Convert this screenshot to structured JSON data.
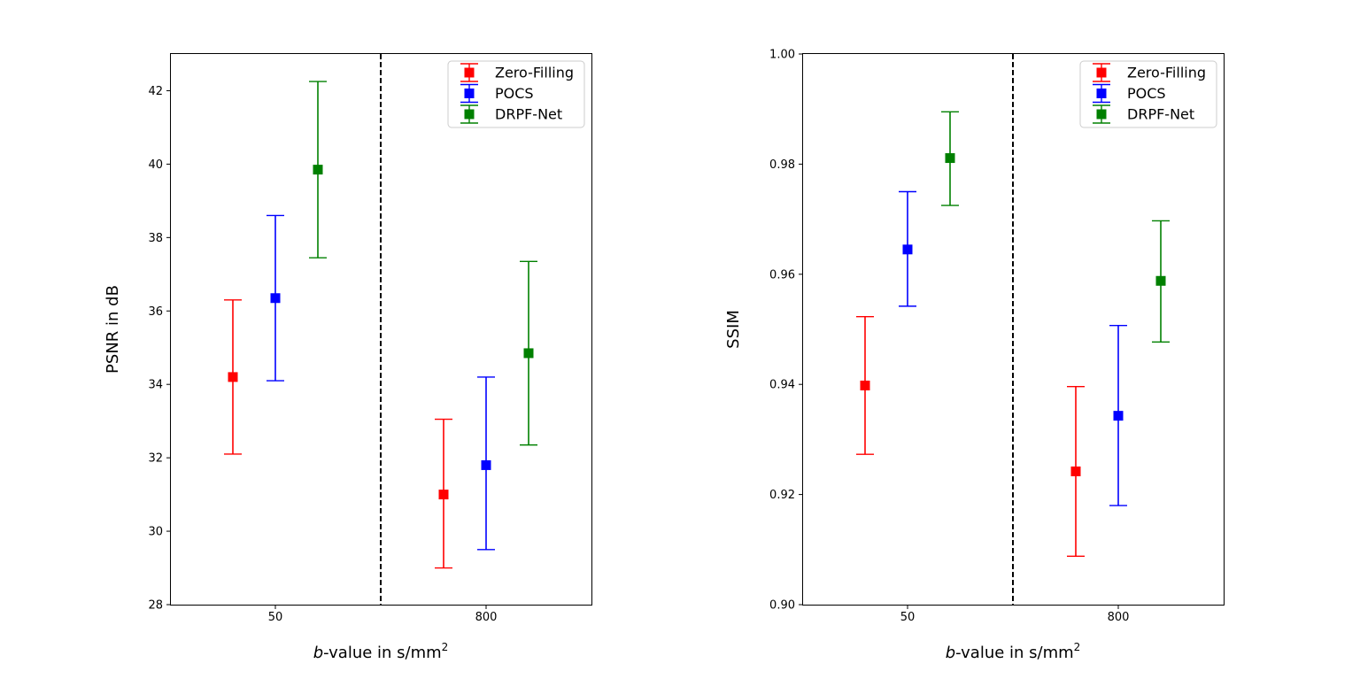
{
  "chart_data": [
    {
      "type": "errorbar",
      "ylabel": "PSNR in dB",
      "xlabel_italic": "b",
      "xlabel_rest": "-value in s/mm",
      "xlabel_sup": "2",
      "categories": [
        "50",
        "800"
      ],
      "ylim": [
        28,
        43
      ],
      "yticks": [
        28,
        30,
        32,
        34,
        36,
        38,
        40,
        42
      ],
      "ytick_labels": [
        "28",
        "30",
        "32",
        "34",
        "36",
        "38",
        "40",
        "42"
      ],
      "divider": "dashed vertical line between b-value groups",
      "legend_position": "upper right",
      "series": [
        {
          "name": "Zero-Filling",
          "color": "#ff0000",
          "means": [
            34.2,
            31.0
          ],
          "lower": [
            32.1,
            29.0
          ],
          "upper": [
            36.3,
            33.05
          ]
        },
        {
          "name": "POCS",
          "color": "#0000ff",
          "means": [
            36.35,
            31.8
          ],
          "lower": [
            34.1,
            29.5
          ],
          "upper": [
            38.6,
            34.2
          ]
        },
        {
          "name": "DRPF-Net",
          "color": "#008000",
          "means": [
            39.85,
            34.85
          ],
          "lower": [
            37.45,
            32.35
          ],
          "upper": [
            42.25,
            37.35
          ]
        }
      ]
    },
    {
      "type": "errorbar",
      "ylabel": "SSIM",
      "xlabel_italic": "b",
      "xlabel_rest": "-value in s/mm",
      "xlabel_sup": "2",
      "categories": [
        "50",
        "800"
      ],
      "ylim": [
        0.9,
        1.0
      ],
      "yticks": [
        0.9,
        0.92,
        0.94,
        0.96,
        0.98,
        1.0
      ],
      "ytick_labels": [
        "0.90",
        "0.92",
        "0.94",
        "0.96",
        "0.98",
        "1.00"
      ],
      "divider": "dashed vertical line between b-value groups",
      "legend_position": "upper right",
      "series": [
        {
          "name": "Zero-Filling",
          "color": "#ff0000",
          "means": [
            0.9398,
            0.9242
          ],
          "lower": [
            0.9273,
            0.9088
          ],
          "upper": [
            0.9523,
            0.9396
          ]
        },
        {
          "name": "POCS",
          "color": "#0000ff",
          "means": [
            0.9645,
            0.9343
          ],
          "lower": [
            0.9542,
            0.918
          ],
          "upper": [
            0.975,
            0.9507
          ]
        },
        {
          "name": "DRPF-Net",
          "color": "#008000",
          "means": [
            0.9811,
            0.9588
          ],
          "lower": [
            0.9725,
            0.9477
          ],
          "upper": [
            0.9895,
            0.9697
          ]
        }
      ]
    }
  ]
}
